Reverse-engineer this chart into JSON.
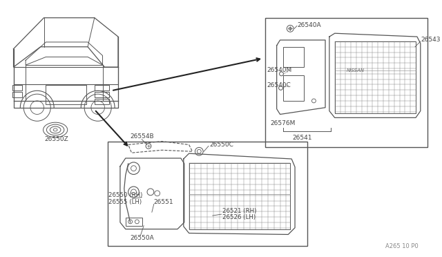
{
  "bg_color": "#ffffff",
  "line_color": "#555555",
  "text_color": "#444444",
  "footer_text": "A265 10 P0",
  "parts": {
    "label_26550Z": "26550Z",
    "label_26554B": "26554B",
    "label_26550C": "26550C",
    "label_26551": "26551",
    "label_26550A": "26550A",
    "label_26550RH": "26550 (RH)",
    "label_26555LH": "26555 (LH)",
    "label_26521RH": "26521 (RH)",
    "label_26526LH": "26526 (LH)",
    "label_26540A": "26540A",
    "label_26543": "26543",
    "label_26540M": "26540M",
    "label_26540C": "26540C",
    "label_26576M": "26576M",
    "label_26541": "26541"
  }
}
